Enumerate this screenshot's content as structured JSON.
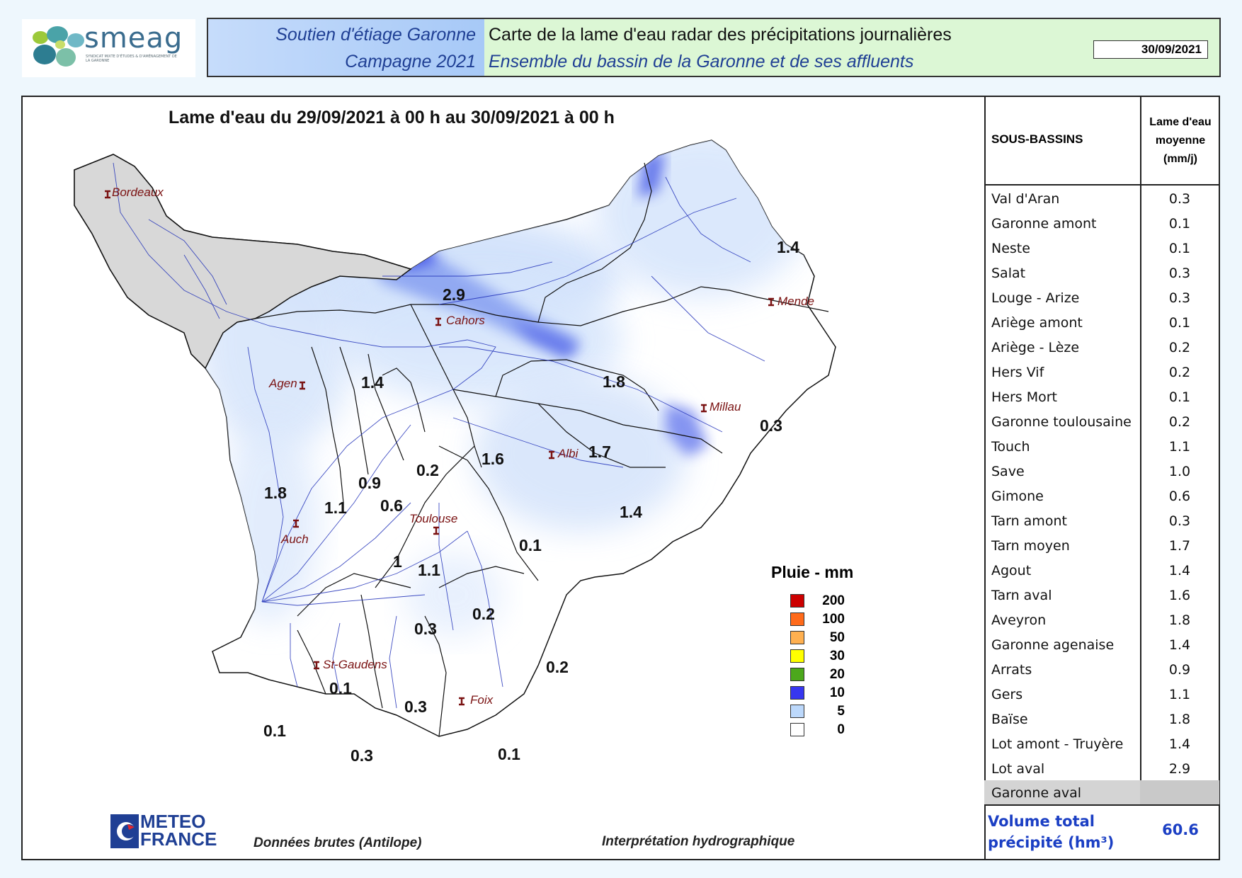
{
  "header": {
    "logo_word": "smeag",
    "logo_sub": "Syndicat mixte d'études & d'aménagement de la Garonne",
    "left_line1": "Soutien d'étiage Garonne",
    "left_line2": "Campagne 2021",
    "right_line1": "Carte de la lame d'eau radar des précipitations journalières",
    "right_line2": "Ensemble du bassin de la Garonne et de ses affluents",
    "date": "30/09/2021"
  },
  "map": {
    "title": "Lame d'eau du 29/09/2021 à 00 h au 30/09/2021 à 00 h",
    "cities": [
      "Bordeaux",
      "Agen",
      "Cahors",
      "Mende",
      "Millau",
      "Albi",
      "Toulouse",
      "Auch",
      "St-Gaudens",
      "Foix"
    ],
    "zone_values": [
      "2.9",
      "1.4",
      "1.4",
      "1.8",
      "0.3",
      "1.7",
      "1.6",
      "0.2",
      "0.9",
      "0.6",
      "1.8",
      "1.1",
      "1.4",
      "0.1",
      "1",
      "1.1",
      "0.3",
      "0.2",
      "0.2",
      "0.1",
      "0.3",
      "0.1",
      "0.3",
      "0.1"
    ],
    "colors": {
      "no_data": "#d8d8d8",
      "light_blue": "#cfe0fb",
      "blue": "#3c4de8"
    }
  },
  "legend": {
    "title": "Pluie - mm",
    "items": [
      {
        "label": "200",
        "color": "#cc0000"
      },
      {
        "label": "100",
        "color": "#ff6a1a"
      },
      {
        "label": "50",
        "color": "#ffb050"
      },
      {
        "label": "30",
        "color": "#ffff00"
      },
      {
        "label": "20",
        "color": "#4ca81c"
      },
      {
        "label": "10",
        "color": "#3737f0"
      },
      {
        "label": "5",
        "color": "#bcd8fb"
      },
      {
        "label": "0",
        "color": "#ffffff"
      }
    ]
  },
  "footer": {
    "meteo_line1": "METEO",
    "meteo_line2": "FRANCE",
    "source": "Données brutes (Antilope)",
    "interpretation": "Interprétation hydrographique"
  },
  "table": {
    "header_left": "SOUS-BASSINS",
    "header_right_l1": "Lame d'eau",
    "header_right_l2": "moyenne",
    "header_right_l3": "(mm/j)",
    "rows": [
      {
        "name": "Val d'Aran",
        "value": "0.3"
      },
      {
        "name": "Garonne amont",
        "value": "0.1"
      },
      {
        "name": "Neste",
        "value": "0.1"
      },
      {
        "name": "Salat",
        "value": "0.3"
      },
      {
        "name": "Louge - Arize",
        "value": "0.3"
      },
      {
        "name": "Ariège amont",
        "value": "0.1"
      },
      {
        "name": "Ariège - Lèze",
        "value": "0.2"
      },
      {
        "name": "Hers Vif",
        "value": "0.2"
      },
      {
        "name": "Hers Mort",
        "value": "0.1"
      },
      {
        "name": "Garonne toulousaine",
        "value": "0.2"
      },
      {
        "name": "Touch",
        "value": "1.1"
      },
      {
        "name": "Save",
        "value": "1.0"
      },
      {
        "name": "Gimone",
        "value": "0.6"
      },
      {
        "name": "Tarn amont",
        "value": "0.3"
      },
      {
        "name": "Tarn moyen",
        "value": "1.7"
      },
      {
        "name": "Agout",
        "value": "1.4"
      },
      {
        "name": "Tarn aval",
        "value": "1.6"
      },
      {
        "name": "Aveyron",
        "value": "1.8"
      },
      {
        "name": "Garonne agenaise",
        "value": "1.4"
      },
      {
        "name": "Arrats",
        "value": "0.9"
      },
      {
        "name": "Gers",
        "value": "1.1"
      },
      {
        "name": "Baïse",
        "value": "1.8"
      },
      {
        "name": "Lot amont - Truyère",
        "value": "1.4"
      },
      {
        "name": "Lot aval",
        "value": "2.9"
      },
      {
        "name": "Garonne aval",
        "value": ""
      }
    ],
    "total_label_l1": "Volume total",
    "total_label_l2": "précipité (hm³)",
    "total_value": "60.6"
  }
}
